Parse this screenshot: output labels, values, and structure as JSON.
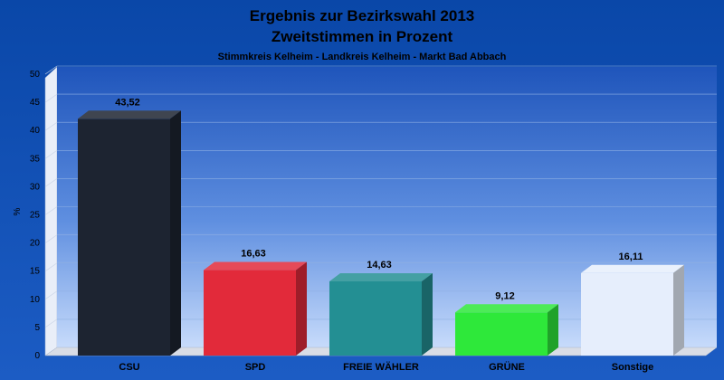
{
  "chart_data": {
    "type": "bar",
    "title": "Ergebnis zur Bezirkswahl 2013",
    "title2": "Zweitstimmen in Prozent",
    "subtitle": "Stimmkreis Kelheim - Landkreis Kelheim - Markt Bad Abbach",
    "ylabel": "%",
    "xlabel": "",
    "ylim": [
      0,
      50
    ],
    "yticks": [
      "0",
      "5",
      "10",
      "15",
      "20",
      "25",
      "30",
      "35",
      "40",
      "45",
      "50"
    ],
    "categories": [
      "CSU",
      "SPD",
      "FREIE WÄHLER",
      "GRÜNE",
      "Sonstige"
    ],
    "values": [
      43.52,
      16.63,
      14.63,
      9.12,
      16.11
    ],
    "value_labels": [
      "43,52",
      "16,63",
      "14,63",
      "9,12",
      "16,11"
    ],
    "colors": [
      "#1d2431",
      "#e22a3a",
      "#238f93",
      "#2ee83a",
      "#e6eefc"
    ],
    "grid": true,
    "legend": "none"
  }
}
